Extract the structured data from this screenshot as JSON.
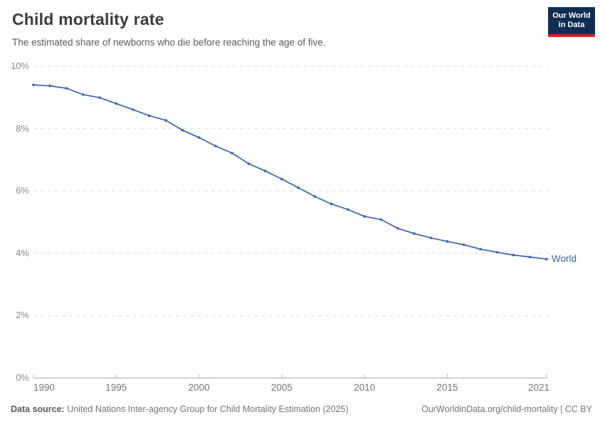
{
  "header": {
    "title": "Child mortality rate",
    "subtitle": "The estimated share of newborns who die before reaching the age of five.",
    "logo": {
      "line1": "Our World",
      "line2": "in Data"
    }
  },
  "chart_data": {
    "type": "line",
    "title": "Child mortality rate",
    "xlabel": "",
    "ylabel": "",
    "ylim": [
      0,
      10
    ],
    "yticks": [
      0,
      2,
      4,
      6,
      8,
      10
    ],
    "ytick_suffix": "%",
    "xlim": [
      1990,
      2021
    ],
    "xticks": [
      1990,
      1995,
      2000,
      2005,
      2010,
      2015,
      2021
    ],
    "grid": "horizontal-dashed",
    "legend": "end-of-line-label",
    "series": [
      {
        "name": "World",
        "x": [
          1990,
          1991,
          1992,
          1993,
          1994,
          1995,
          1996,
          1997,
          1998,
          1999,
          2000,
          2001,
          2002,
          2003,
          2004,
          2005,
          2006,
          2007,
          2008,
          2009,
          2010,
          2011,
          2012,
          2013,
          2014,
          2015,
          2016,
          2017,
          2018,
          2019,
          2020,
          2021
        ],
        "values": [
          9.4,
          9.37,
          9.29,
          9.09,
          8.99,
          8.8,
          8.61,
          8.41,
          8.26,
          7.95,
          7.71,
          7.44,
          7.21,
          6.87,
          6.64,
          6.38,
          6.1,
          5.82,
          5.58,
          5.4,
          5.18,
          5.08,
          4.8,
          4.63,
          4.49,
          4.38,
          4.27,
          4.13,
          4.03,
          3.94,
          3.88,
          3.81
        ]
      }
    ],
    "colors": {
      "line": "#3e63a6",
      "series_label": "#3c62a4",
      "grid": "#dcdcdc",
      "axis": "#a6a6a6",
      "tick": "#b3b3b3",
      "logo_bg": "#0f2d52",
      "logo_red": "#cb2920"
    }
  },
  "footer": {
    "source_label": "Data source:",
    "source_text": " United Nations Inter-agency Group for Child Mortality Estimation (2025)",
    "credit": "OurWorldinData.org/child-mortality | CC BY"
  }
}
